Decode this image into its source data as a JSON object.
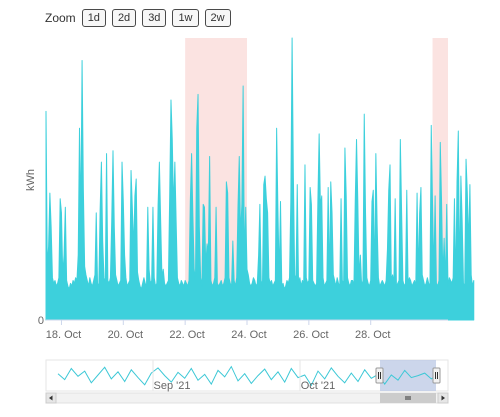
{
  "zoom": {
    "label": "Zoom",
    "buttons": [
      "1d",
      "2d",
      "3d",
      "1w",
      "2w"
    ]
  },
  "colors": {
    "series": "#3dd0dc",
    "band": "#fbe3e1",
    "navigator_mask": "#b7c4e2",
    "navigator_line": "#3dc8d6"
  },
  "chart_data": {
    "type": "area",
    "xlabel": "",
    "ylabel": "kWh",
    "y_ticks": [
      "0"
    ],
    "x_ticks": [
      "18. Oct",
      "20. Oct",
      "22. Oct",
      "24. Oct",
      "26. Oct",
      "28. Oct"
    ],
    "x_range": [
      "2021-10-17T12:00",
      "2021-10-30T12:00"
    ],
    "ylim": [
      0,
      10
    ],
    "plot_bands": [
      {
        "from": "2021-10-22T00:00",
        "to": "2021-10-24T00:00"
      },
      {
        "from": "2021-10-30T00:00",
        "to": "2021-10-30T12:00"
      }
    ],
    "series": [
      {
        "x_start": "2021-10-17T12:00",
        "interval_hours": 1,
        "values": [
          7.4,
          1.9,
          2.6,
          4.5,
          3.3,
          1.5,
          1.3,
          1.4,
          1.2,
          1.3,
          1.5,
          4.3,
          3.8,
          1.6,
          2.3,
          4.0,
          1.4,
          1.2,
          1.1,
          1.3,
          1.2,
          1.4,
          1.3,
          1.5,
          1.4,
          2.3,
          6.8,
          3.5,
          9.2,
          4.6,
          1.9,
          1.6,
          1.4,
          1.2,
          1.5,
          1.3,
          1.2,
          1.4,
          1.6,
          3.8,
          1.3,
          1.2,
          3.9,
          5.6,
          2.8,
          1.5,
          1.3,
          5.9,
          1.4,
          1.3,
          1.5,
          3.5,
          6.0,
          3.3,
          1.6,
          1.4,
          1.2,
          1.3,
          1.4,
          5.6,
          4.2,
          2.3,
          1.5,
          1.2,
          1.3,
          1.4,
          5.3,
          4.0,
          2.5,
          4.4,
          5.0,
          1.7,
          1.4,
          1.2,
          1.1,
          1.3,
          1.5,
          1.3,
          1.2,
          4.0,
          1.8,
          1.3,
          1.4,
          4.0,
          1.5,
          1.2,
          1.3,
          4.1,
          5.6,
          3.5,
          1.5,
          1.8,
          1.3,
          1.2,
          1.3,
          1.4,
          4.4,
          7.8,
          6.4,
          3.9,
          5.6,
          3.5,
          1.5,
          1.3,
          1.2,
          1.4,
          1.3,
          1.2,
          1.4,
          1.3,
          1.2,
          1.4,
          4.2,
          5.9,
          3.7,
          1.8,
          1.4,
          6.8,
          8.0,
          3.3,
          1.5,
          1.2,
          4.1,
          4.0,
          1.9,
          2.7,
          2.4,
          5.8,
          1.4,
          1.2,
          1.3,
          1.5,
          4.0,
          1.3,
          1.2,
          1.3,
          1.4,
          1.2,
          1.3,
          1.5,
          4.9,
          4.5,
          1.5,
          1.3,
          1.2,
          2.8,
          1.4,
          1.2,
          1.5,
          4.0,
          5.8,
          3.0,
          4.1,
          8.3,
          2.0,
          4.0,
          1.8,
          1.6,
          1.3,
          1.2,
          1.3,
          1.5,
          1.4,
          1.2,
          1.3,
          2.3,
          4.1,
          1.4,
          1.2,
          4.8,
          5.1,
          4.3,
          3.8,
          1.5,
          1.3,
          1.4,
          1.2,
          1.3,
          1.4,
          6.8,
          3.9,
          1.5,
          4.2,
          1.2,
          1.3,
          1.1,
          1.2,
          1.4,
          1.3,
          1.5,
          4.2,
          10.0,
          5.1,
          1.6,
          1.4,
          4.8,
          1.3,
          1.5,
          1.2,
          1.4,
          1.3,
          5.5,
          1.5,
          1.3,
          1.4,
          4.7,
          4.1,
          1.4,
          1.3,
          1.2,
          1.3,
          4.2,
          6.6,
          4.0,
          4.4,
          1.5,
          1.2,
          1.3,
          1.4,
          4.7,
          1.3,
          4.9,
          3.8,
          1.6,
          1.4,
          1.2,
          1.5,
          1.3,
          1.2,
          4.3,
          1.4,
          1.3,
          6.1,
          4.4,
          1.5,
          1.3,
          1.2,
          1.4,
          1.4,
          1.2,
          4.2,
          6.4,
          4.2,
          1.5,
          2.3,
          1.2,
          1.4,
          7.3,
          3.8,
          1.5,
          1.3,
          1.2,
          1.4,
          4.2,
          4.6,
          1.4,
          5.9,
          3.4,
          1.5,
          1.2,
          1.3,
          1.4,
          1.3,
          1.2,
          1.4,
          2.5,
          4.6,
          5.5,
          1.4,
          1.6,
          1.3,
          4.3,
          1.2,
          1.3,
          1.4,
          6.4,
          3.8,
          1.4,
          1.2,
          1.3,
          4.6,
          1.3,
          1.5,
          1.4,
          1.2,
          1.3,
          1.4,
          1.2,
          4.5,
          1.5,
          3.8,
          4.7,
          1.6,
          1.4,
          1.2,
          1.3,
          1.5,
          1.3,
          1.2,
          6.9,
          4.1,
          1.6,
          4.4,
          1.3,
          1.2,
          1.4,
          6.3,
          4.2,
          1.5,
          2.9,
          1.3,
          4.1,
          1.2,
          1.5,
          1.4,
          1.3,
          1.5,
          4.3,
          1.2,
          4.9,
          6.7,
          1.4,
          5.1,
          3.5,
          1.3,
          1.2,
          5.7,
          4.5,
          2.6,
          4.8,
          1.6,
          1.2,
          1.4
        ]
      }
    ]
  },
  "navigator": {
    "x_ticks": [
      "Sep '21",
      "Oct '21"
    ],
    "series": [
      5.2,
      4.3,
      6.0,
      4.8,
      5.6,
      3.8,
      5.0,
      6.2,
      4.4,
      5.5,
      4.0,
      5.8,
      4.6,
      3.5,
      5.3,
      6.1,
      4.9,
      3.9,
      5.4,
      4.5,
      6.0,
      4.2,
      5.1,
      3.6,
      5.7,
      4.7,
      6.3,
      4.1,
      5.2,
      3.7,
      4.9,
      5.9,
      4.3,
      5.5,
      3.9,
      6.0,
      4.6,
      5.0,
      3.4,
      5.6,
      4.4,
      6.1,
      4.8,
      3.8,
      5.3,
      4.0,
      5.8,
      4.5,
      5.1,
      3.6,
      5.0,
      4.2,
      5.7,
      4.6,
      4.9,
      5.3,
      4.4,
      5.1
    ],
    "window": [
      "2021-10-17T12:00",
      "2021-10-30T12:00"
    ]
  }
}
